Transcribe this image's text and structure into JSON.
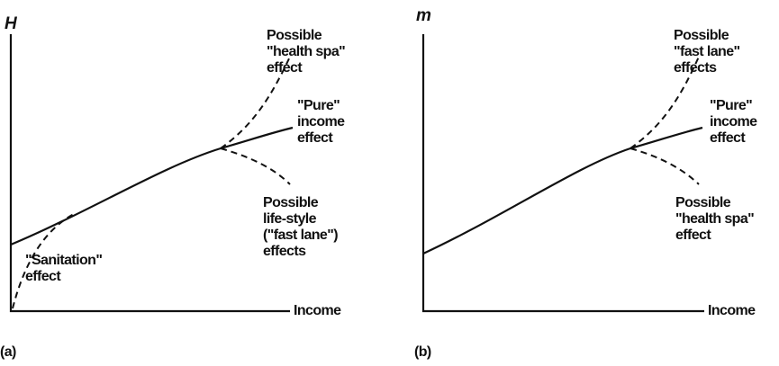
{
  "panels": [
    {
      "label": "(a)",
      "y_axis_label": "H",
      "x_axis_label": "Income",
      "annotations": [
        {
          "lines": [
            "Possible",
            "\"health spa\"",
            "effect"
          ]
        },
        {
          "lines": [
            "\"Pure\"",
            "income",
            "effect"
          ]
        },
        {
          "lines": [
            "Possible",
            "life-style",
            "(\"fast lane\")",
            "effects"
          ]
        },
        {
          "lines": [
            "\"Sanitation\"",
            "effect"
          ]
        }
      ]
    },
    {
      "label": "(b)",
      "y_axis_label": "m",
      "x_axis_label": "Income",
      "annotations": [
        {
          "lines": [
            "Possible",
            "\"fast lane\"",
            "effects"
          ]
        },
        {
          "lines": [
            "\"Pure\"",
            "income",
            "effect"
          ]
        },
        {
          "lines": [
            "Possible",
            "\"health spa\"",
            "effect"
          ]
        }
      ]
    }
  ]
}
